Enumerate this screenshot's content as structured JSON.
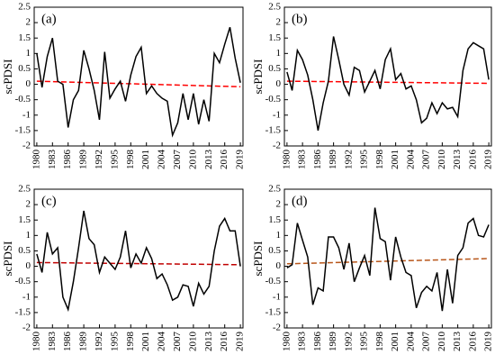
{
  "chart_data": [
    {
      "type": "line",
      "panel_label": "(a)",
      "y_label": "scPDSI",
      "color": "#000000",
      "x": [
        1980,
        1981,
        1982,
        1983,
        1984,
        1985,
        1986,
        1987,
        1988,
        1989,
        1990,
        1991,
        1992,
        1993,
        1994,
        1995,
        1996,
        1997,
        1998,
        1999,
        2000,
        2001,
        2002,
        2003,
        2004,
        2005,
        2006,
        2007,
        2008,
        2009,
        2010,
        2011,
        2012,
        2013,
        2014,
        2015,
        2016,
        2017,
        2018,
        2019
      ],
      "values": [
        1.0,
        -0.1,
        0.9,
        1.5,
        0.1,
        0.0,
        -1.4,
        -0.5,
        -0.2,
        1.1,
        0.5,
        -0.2,
        -1.15,
        1.05,
        -0.45,
        -0.15,
        0.1,
        -0.55,
        0.3,
        0.9,
        1.2,
        -0.3,
        -0.05,
        -0.3,
        -0.45,
        -0.55,
        -1.65,
        -1.25,
        -0.3,
        -1.15,
        -0.3,
        -1.3,
        -0.5,
        -1.2,
        1.0,
        0.7,
        1.3,
        1.85,
        0.85,
        0.05
      ],
      "trend": {
        "color": "#ff0000",
        "x": [
          1980,
          2019
        ],
        "values": [
          0.1,
          -0.08
        ]
      },
      "xlim": [
        1979.5,
        2019.5
      ],
      "xticks": [
        1980,
        1983,
        1986,
        1989,
        1992,
        1995,
        1998,
        2001,
        2004,
        2007,
        2010,
        2013,
        2016,
        2019
      ],
      "ylim": [
        -2,
        2.5
      ],
      "yticks": [
        -2,
        -1.5,
        -1,
        -0.5,
        0,
        0.5,
        1,
        1.5,
        2,
        2.5
      ]
    },
    {
      "type": "line",
      "panel_label": "(b)",
      "y_label": "scPDSI",
      "color": "#000000",
      "x": [
        1980,
        1981,
        1982,
        1983,
        1984,
        1985,
        1986,
        1987,
        1988,
        1989,
        1990,
        1991,
        1992,
        1993,
        1994,
        1995,
        1996,
        1997,
        1998,
        1999,
        2000,
        2001,
        2002,
        2003,
        2004,
        2005,
        2006,
        2007,
        2008,
        2009,
        2010,
        2011,
        2012,
        2013,
        2014,
        2015,
        2016,
        2017,
        2018,
        2019
      ],
      "values": [
        0.4,
        -0.2,
        1.1,
        0.8,
        0.3,
        -0.5,
        -1.5,
        -0.6,
        0.1,
        1.55,
        0.8,
        0.0,
        -0.35,
        0.55,
        0.45,
        -0.25,
        0.1,
        0.45,
        -0.15,
        0.8,
        1.15,
        0.15,
        0.35,
        -0.15,
        -0.05,
        -0.5,
        -1.25,
        -1.1,
        -0.6,
        -0.95,
        -0.6,
        -0.8,
        -0.75,
        -1.05,
        0.45,
        1.15,
        1.35,
        1.25,
        1.15,
        0.15
      ],
      "trend": {
        "color": "#ff0000",
        "x": [
          1980,
          2019
        ],
        "values": [
          0.1,
          0.03
        ]
      },
      "xlim": [
        1979.5,
        2019.5
      ],
      "xticks": [
        1980,
        1983,
        1986,
        1989,
        1992,
        1995,
        1998,
        2001,
        2004,
        2007,
        2010,
        2013,
        2016,
        2019
      ],
      "ylim": [
        -2,
        2.5
      ],
      "yticks": [
        -2,
        -1.5,
        -1,
        -0.5,
        0,
        0.5,
        1,
        1.5,
        2,
        2.5
      ]
    },
    {
      "type": "line",
      "panel_label": "(c)",
      "y_label": "scPDSI",
      "color": "#000000",
      "x": [
        1980,
        1981,
        1982,
        1983,
        1984,
        1985,
        1986,
        1987,
        1988,
        1989,
        1990,
        1991,
        1992,
        1993,
        1994,
        1995,
        1996,
        1997,
        1998,
        1999,
        2000,
        2001,
        2002,
        2003,
        2004,
        2005,
        2006,
        2007,
        2008,
        2009,
        2010,
        2011,
        2012,
        2013,
        2014,
        2015,
        2016,
        2017,
        2018,
        2019
      ],
      "values": [
        0.4,
        -0.2,
        1.1,
        0.4,
        0.6,
        -1.0,
        -1.4,
        -0.5,
        0.6,
        1.8,
        0.9,
        0.7,
        -0.2,
        0.3,
        0.1,
        -0.1,
        0.3,
        1.15,
        -0.05,
        0.4,
        0.1,
        0.6,
        0.25,
        -0.4,
        -0.25,
        -0.6,
        -1.1,
        -1.0,
        -0.6,
        -0.65,
        -1.3,
        -0.55,
        -0.9,
        -0.65,
        0.5,
        1.3,
        1.55,
        1.15,
        1.15,
        0.0
      ],
      "trend": {
        "color": "#c00000",
        "x": [
          1980,
          2019
        ],
        "values": [
          0.12,
          0.05
        ]
      },
      "xlim": [
        1979.5,
        2019.5
      ],
      "xticks": [
        1980,
        1983,
        1986,
        1989,
        1992,
        1995,
        1998,
        2001,
        2004,
        2007,
        2010,
        2013,
        2016,
        2019
      ],
      "ylim": [
        -2,
        2.5
      ],
      "yticks": [
        -2,
        -1.5,
        -1,
        -0.5,
        0,
        0.5,
        1,
        1.5,
        2,
        2.5
      ]
    },
    {
      "type": "line",
      "panel_label": "(d)",
      "y_label": "scPDSI",
      "color": "#000000",
      "x": [
        1980,
        1981,
        1982,
        1983,
        1984,
        1985,
        1986,
        1987,
        1988,
        1989,
        1990,
        1991,
        1992,
        1993,
        1994,
        1995,
        1996,
        1997,
        1998,
        1999,
        2000,
        2001,
        2002,
        2003,
        2004,
        2005,
        2006,
        2007,
        2008,
        2009,
        2010,
        2011,
        2012,
        2013,
        2014,
        2015,
        2016,
        2017,
        2018,
        2019
      ],
      "values": [
        -0.05,
        0.05,
        1.4,
        0.85,
        0.3,
        -1.25,
        -0.7,
        -0.8,
        0.95,
        0.95,
        0.6,
        -0.1,
        0.75,
        -0.5,
        -0.05,
        0.35,
        -0.3,
        1.9,
        0.9,
        0.8,
        -0.45,
        0.95,
        0.3,
        -0.2,
        -0.3,
        -1.35,
        -0.85,
        -0.65,
        -0.8,
        -0.2,
        -1.45,
        -0.1,
        -1.2,
        0.35,
        0.6,
        1.4,
        1.55,
        1.0,
        0.95,
        1.35
      ],
      "trend": {
        "color": "#b8561a",
        "x": [
          1980,
          2019
        ],
        "values": [
          0.08,
          0.25
        ]
      },
      "xlim": [
        1979.5,
        2019.5
      ],
      "xticks": [
        1980,
        1983,
        1986,
        1989,
        1992,
        1995,
        1998,
        2001,
        2004,
        2007,
        2010,
        2013,
        2016,
        2019
      ],
      "ylim": [
        -2,
        2.5
      ],
      "yticks": [
        -2,
        -1.5,
        -1,
        -0.5,
        0,
        0.5,
        1,
        1.5,
        2,
        2.5
      ]
    }
  ]
}
